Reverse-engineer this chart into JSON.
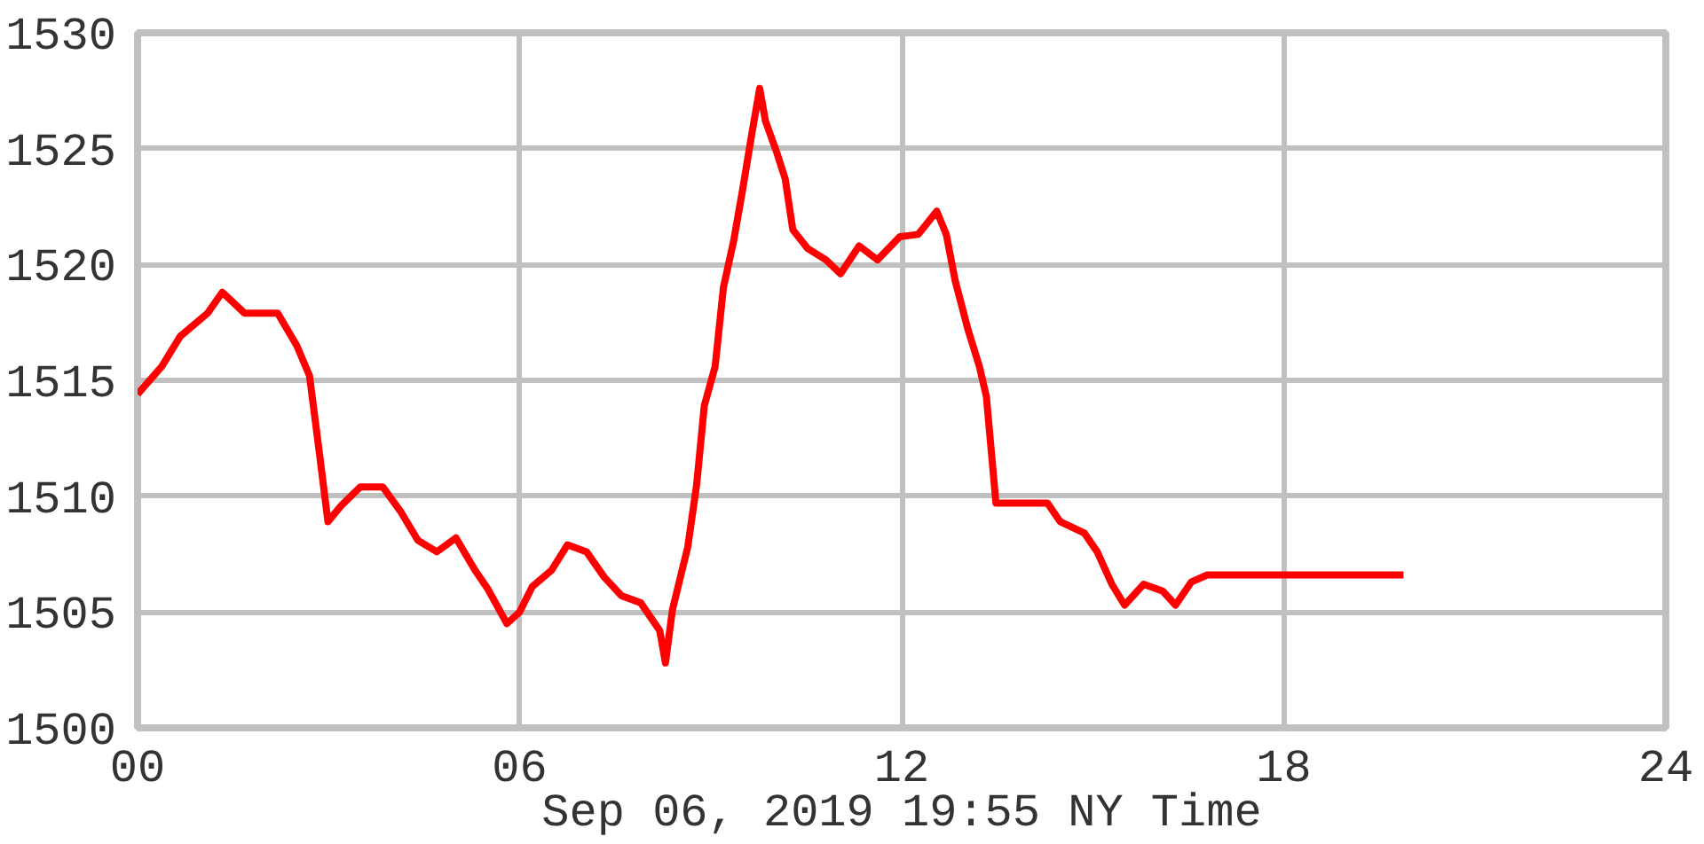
{
  "chart_data": {
    "type": "line",
    "xlabel": "Sep 06, 2019 19:55 NY Time",
    "x": [
      0,
      0.38,
      0.67,
      1.1,
      1.33,
      1.68,
      2.2,
      2.5,
      2.7,
      2.84,
      2.99,
      3.2,
      3.5,
      3.85,
      4.14,
      4.4,
      4.7,
      5.0,
      5.3,
      5.5,
      5.8,
      6.0,
      6.2,
      6.5,
      6.75,
      7.05,
      7.33,
      7.6,
      7.9,
      8.2,
      8.29,
      8.4,
      8.64,
      8.78,
      8.9,
      9.07,
      9.2,
      9.36,
      9.5,
      9.65,
      9.77,
      9.86,
      10.03,
      10.17,
      10.29,
      10.52,
      10.81,
      11.04,
      11.33,
      11.62,
      11.97,
      12.26,
      12.55,
      12.7,
      12.84,
      13.04,
      13.22,
      13.33,
      13.48,
      14.29,
      14.49,
      14.87,
      15.07,
      15.3,
      15.5,
      15.8,
      16.1,
      16.3,
      16.55,
      16.8,
      19.88
    ],
    "series": [
      {
        "color": "#ff0000",
        "values": [
          1514.4,
          1515.6,
          1516.9,
          1517.9,
          1518.8,
          1517.9,
          1517.9,
          1516.5,
          1515.2,
          1512.2,
          1508.9,
          1509.6,
          1510.4,
          1510.4,
          1509.3,
          1508.1,
          1507.6,
          1508.2,
          1506.8,
          1506,
          1504.5,
          1505,
          1506.1,
          1506.8,
          1507.9,
          1507.6,
          1506.5,
          1505.7,
          1505.4,
          1504.2,
          1502.8,
          1505.1,
          1507.8,
          1510.5,
          1513.9,
          1515.6,
          1519,
          1521,
          1523.2,
          1525.7,
          1527.6,
          1526.2,
          1524.9,
          1523.7,
          1521.5,
          1520.7,
          1520.2,
          1519.6,
          1520.8,
          1520.2,
          1521.2,
          1521.3,
          1522.3,
          1521.3,
          1519.3,
          1517.2,
          1515.6,
          1514.3,
          1509.7,
          1509.7,
          1508.9,
          1508.4,
          1507.6,
          1506.2,
          1505.3,
          1506.2,
          1505.9,
          1505.3,
          1506.3,
          1506.6,
          1506.6
        ]
      }
    ],
    "xlim": [
      0,
      24
    ],
    "xticks": [
      {
        "value": 0,
        "label": "00"
      },
      {
        "value": 6,
        "label": "06"
      },
      12,
      18,
      24
    ],
    "ylim": [
      1500,
      1530
    ],
    "yticks": [
      1500,
      1505,
      1510,
      1515,
      1520,
      1525,
      1530
    ],
    "grid": true,
    "marker": "none",
    "line_style": "solid"
  }
}
